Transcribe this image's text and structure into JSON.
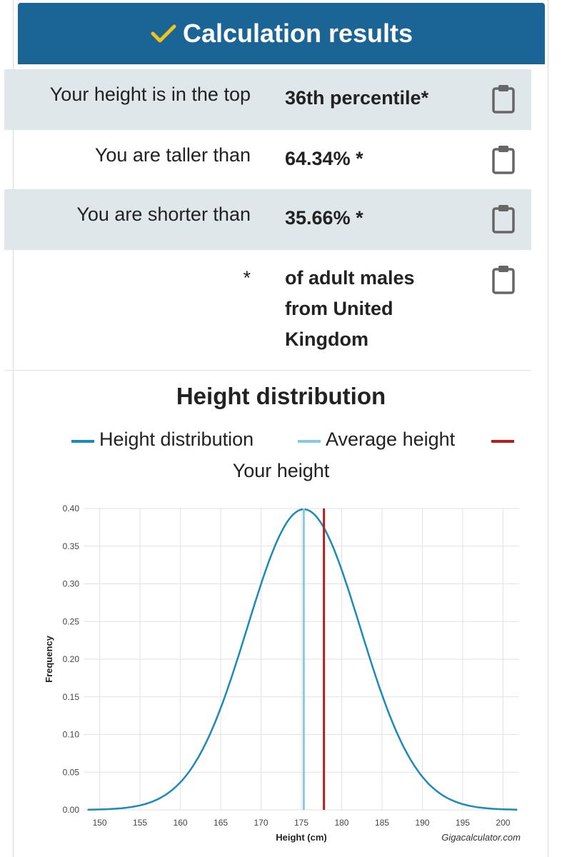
{
  "header": {
    "title": "Calculation results",
    "accent_color": "#1a6496",
    "check_color": "#f0c419"
  },
  "results": [
    {
      "label": "Your height is in the top",
      "value": "36th percentile*",
      "icon": "clipboard-icon"
    },
    {
      "label": "You are taller than",
      "value": "64.34% *",
      "icon": "clipboard-icon"
    },
    {
      "label": "You are shorter than",
      "value": "35.66% *",
      "icon": "clipboard-icon"
    },
    {
      "label": "*",
      "value": "of adult males from United Kingdom",
      "icon": "clipboard-icon"
    }
  ],
  "chart": {
    "title": "Height distribution",
    "legend": [
      {
        "name": "Height distribution",
        "color": "#1a8bb8"
      },
      {
        "name": "Average height",
        "color": "#88c9e0"
      },
      {
        "name": "Your height",
        "color": "#b71c1c"
      }
    ],
    "credit": "Gigacalculator.com"
  },
  "chart_data": {
    "type": "line",
    "xlabel": "Height (cm)",
    "ylabel": "Frequency",
    "xlim": [
      148,
      202
    ],
    "ylim": [
      0,
      0.4
    ],
    "xticks": [
      150,
      155,
      160,
      165,
      170,
      175,
      180,
      185,
      190,
      195,
      200
    ],
    "yticks": [
      "0.00",
      "0.05",
      "0.10",
      "0.15",
      "0.20",
      "0.25",
      "0.30",
      "0.35",
      "0.40"
    ],
    "grid": true,
    "legend_position": "top",
    "series": [
      {
        "name": "Height distribution",
        "type": "normal_curve",
        "mean": 175.3,
        "peak": 0.399
      },
      {
        "name": "Average height",
        "x": 175.3
      },
      {
        "name": "Your height",
        "x": 177.8
      }
    ]
  }
}
